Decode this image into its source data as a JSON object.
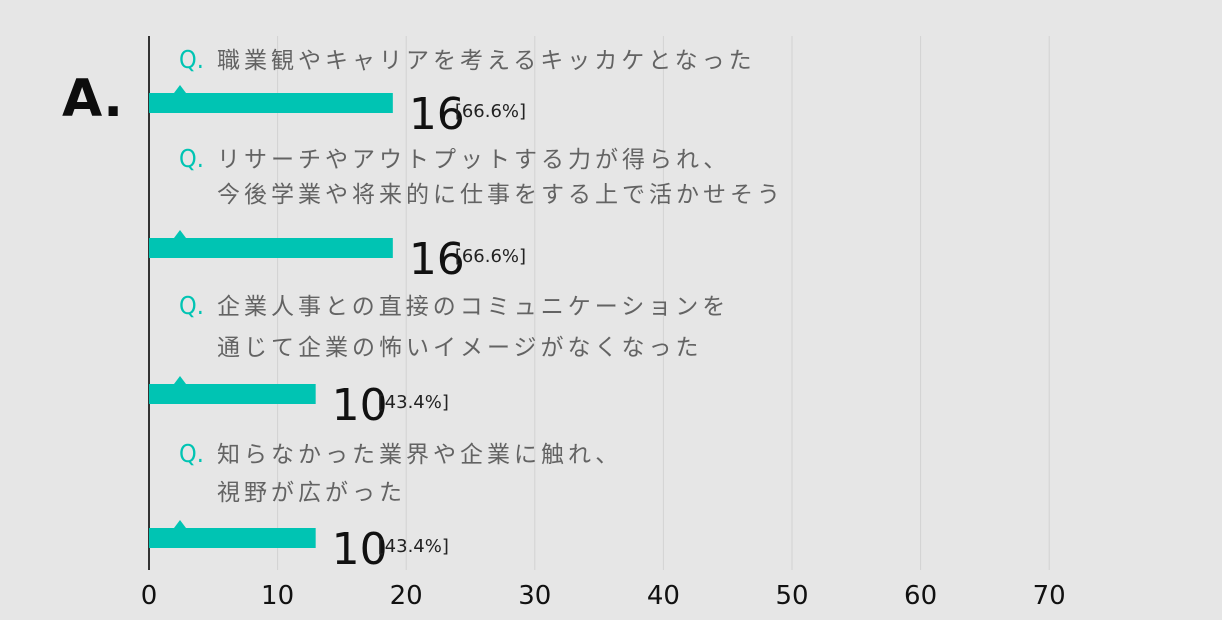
{
  "answer_label": "A.",
  "chart_data": {
    "type": "bar",
    "orientation": "horizontal",
    "question_marker": "Q.",
    "categories": [
      [
        "職業観やキャリアを考えるキッカケとなった"
      ],
      [
        "リサーチやアウトプットする力が得られ、",
        "今後学業や将来的に仕事をする上で活かせそう"
      ],
      [
        "企業人事との直接のコミュニケーションを",
        "通じて企業の怖いイメージがなくなった"
      ],
      [
        "知らなかった業界や企業に触れ、",
        "視野が広がった"
      ]
    ],
    "values": [
      16,
      16,
      10,
      10
    ],
    "percent_labels": [
      "[66.6%]",
      "[66.6%]",
      "[43.4%]",
      "[43.4%]"
    ],
    "xlim": [
      0,
      70
    ],
    "xticks": [
      0,
      10,
      20,
      30,
      40,
      50,
      60,
      70
    ],
    "grid": true,
    "colors": {
      "bar": "#00c4b3",
      "grid": "#d3d3d3",
      "axis": "#333333",
      "question_text": "#636363",
      "background": "#e6e6e6"
    }
  }
}
